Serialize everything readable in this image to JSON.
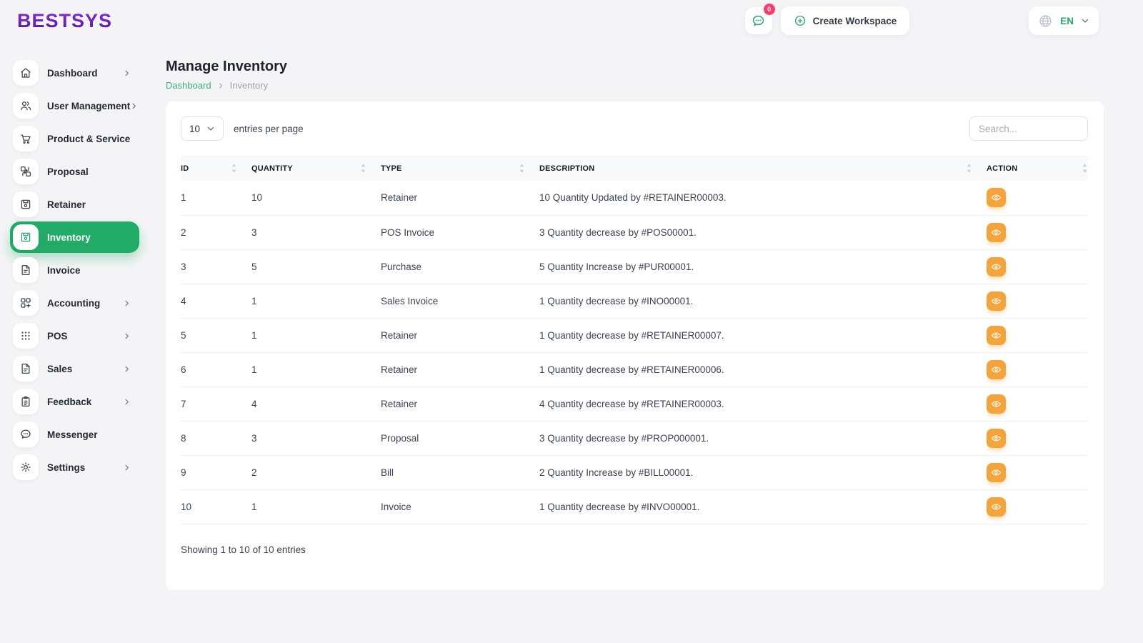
{
  "brand": {
    "logo": "BESTSYS"
  },
  "header": {
    "chat_badge": "0",
    "create_workspace_label": "Create Workspace",
    "language_code": "EN",
    "icons": [
      "chat-icon",
      "plus-circle-icon",
      "globe-icon",
      "chevron-down-icon"
    ]
  },
  "sidebar": {
    "items": [
      {
        "label": "Dashboard",
        "icon": "home-icon",
        "chevron": true,
        "active": false
      },
      {
        "label": "User Management",
        "icon": "users-icon",
        "chevron": true,
        "active": false
      },
      {
        "label": "Product & Service",
        "icon": "cart-icon",
        "chevron": false,
        "active": false
      },
      {
        "label": "Proposal",
        "icon": "transform-icon",
        "chevron": false,
        "active": false
      },
      {
        "label": "Retainer",
        "icon": "save-icon",
        "chevron": false,
        "active": false
      },
      {
        "label": "Inventory",
        "icon": "save-icon",
        "chevron": false,
        "active": true
      },
      {
        "label": "Invoice",
        "icon": "file-icon",
        "chevron": false,
        "active": false
      },
      {
        "label": "Accounting",
        "icon": "modules-icon",
        "chevron": true,
        "active": false
      },
      {
        "label": "POS",
        "icon": "grid-dots-icon",
        "chevron": true,
        "active": false
      },
      {
        "label": "Sales",
        "icon": "file-icon",
        "chevron": true,
        "active": false
      },
      {
        "label": "Feedback",
        "icon": "clipboard-icon",
        "chevron": true,
        "active": false
      },
      {
        "label": "Messenger",
        "icon": "chat-icon",
        "chevron": false,
        "active": false
      },
      {
        "label": "Settings",
        "icon": "gear-icon",
        "chevron": true,
        "active": false
      }
    ]
  },
  "page": {
    "title": "Manage Inventory",
    "breadcrumb_root": "Dashboard",
    "breadcrumb_current": "Inventory"
  },
  "controls": {
    "entries_value": "10",
    "entries_label": "entries per page",
    "search_placeholder": "Search..."
  },
  "table": {
    "columns": [
      "ID",
      "QUANTITY",
      "TYPE",
      "DESCRIPTION",
      "ACTION"
    ],
    "rows": [
      {
        "id": "1",
        "quantity": "10",
        "type": "Retainer",
        "description": "10 Quantity Updated by #RETAINER00003."
      },
      {
        "id": "2",
        "quantity": "3",
        "type": "POS Invoice",
        "description": "3 Quantity decrease by #POS00001."
      },
      {
        "id": "3",
        "quantity": "5",
        "type": "Purchase",
        "description": "5 Quantity Increase by #PUR00001."
      },
      {
        "id": "4",
        "quantity": "1",
        "type": "Sales Invoice",
        "description": "1 Quantity decrease by #INO00001."
      },
      {
        "id": "5",
        "quantity": "1",
        "type": "Retainer",
        "description": "1 Quantity decrease by #RETAINER00007."
      },
      {
        "id": "6",
        "quantity": "1",
        "type": "Retainer",
        "description": "1 Quantity decrease by #RETAINER00006."
      },
      {
        "id": "7",
        "quantity": "4",
        "type": "Retainer",
        "description": "4 Quantity decrease by #RETAINER00003."
      },
      {
        "id": "8",
        "quantity": "3",
        "type": "Proposal",
        "description": "3 Quantity decrease by #PROP000001."
      },
      {
        "id": "9",
        "quantity": "2",
        "type": "Bill",
        "description": "2 Quantity Increase by #BILL00001."
      },
      {
        "id": "10",
        "quantity": "1",
        "type": "Invoice",
        "description": "1 Quantity decrease by #INVO00001."
      }
    ],
    "footer": "Showing 1 to 10 of 10 entries",
    "action_icon": "eye-icon",
    "sort_icon": "sort-icon"
  },
  "colors": {
    "accent_green": "#21ab67",
    "action_orange": "#f5a43b",
    "badge_red": "#fa3e6c",
    "logo_purple_top": "#8a2be2",
    "logo_purple_bottom": "#4c1d95",
    "page_background": "#f4f4f6",
    "table_header_bg": "#f8f9fb"
  }
}
